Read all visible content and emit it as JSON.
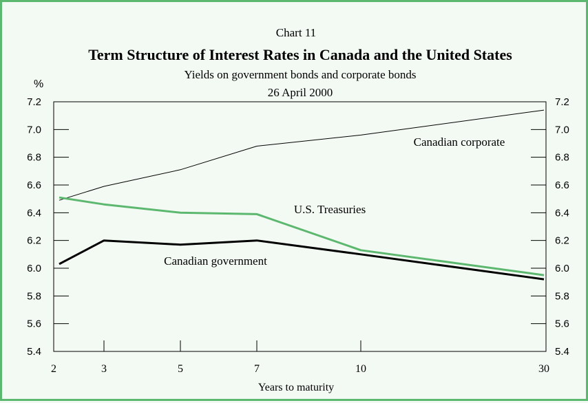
{
  "chart_label": "Chart 11",
  "chart_data": {
    "type": "line",
    "title": "Term Structure of Interest Rates in Canada and the United States",
    "subtitle": "Yields on government bonds and corporate bonds",
    "date_label": "26 April 2000",
    "xlabel": "Years to maturity",
    "ylabel": "%",
    "x": [
      "2",
      "3",
      "5",
      "7",
      "10",
      "30"
    ],
    "ylim": [
      5.4,
      7.2
    ],
    "yticks": [
      "7.2",
      "7.0",
      "6.8",
      "6.6",
      "6.4",
      "6.2",
      "6.0",
      "5.8",
      "5.6",
      "5.4"
    ],
    "grid": false,
    "series": [
      {
        "name": "Canadian corporate",
        "color": "#000000",
        "values": [
          6.49,
          6.59,
          6.71,
          6.88,
          6.96,
          7.14
        ]
      },
      {
        "name": "U.S. Treasuries",
        "color": "#5cb86e",
        "values": [
          6.51,
          6.46,
          6.4,
          6.39,
          6.13,
          5.95
        ]
      },
      {
        "name": "Canadian government",
        "color": "#000000",
        "values": [
          6.03,
          6.2,
          6.17,
          6.2,
          6.1,
          5.92
        ]
      }
    ]
  }
}
